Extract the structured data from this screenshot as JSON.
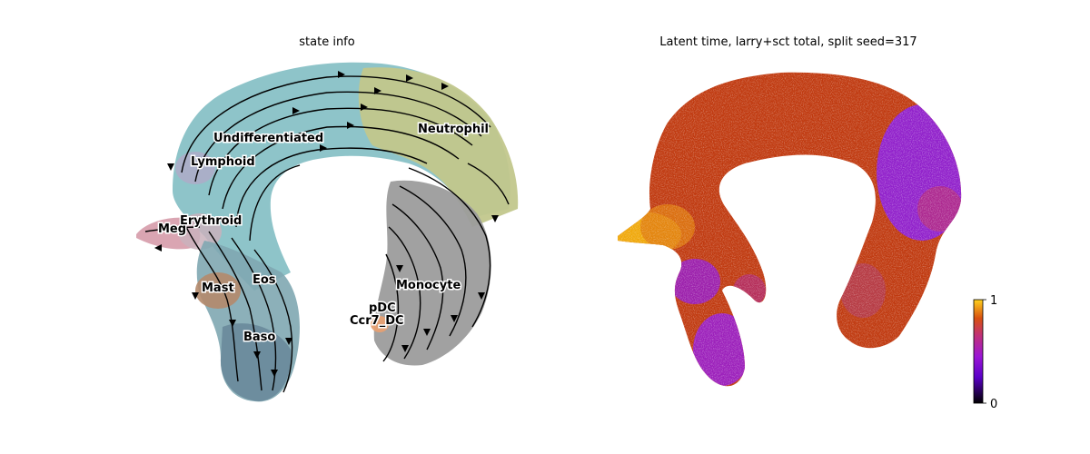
{
  "panels": {
    "left": {
      "title": "state info"
    },
    "right": {
      "title": "Latent time, larry+sct total, split seed=317"
    }
  },
  "chart_data": [
    {
      "type": "scatter",
      "title": "state info",
      "plot_kind": "UMAP embedding with RNA velocity streamlines",
      "axes_visible": false,
      "cell_types": [
        {
          "name": "Undifferentiated",
          "color": "#7fbcc0"
        },
        {
          "name": "Neutrophil",
          "color": "#bfc58a"
        },
        {
          "name": "Lymphoid",
          "color": "#b9a7c9"
        },
        {
          "name": "Meg",
          "color": "#d9a0ad"
        },
        {
          "name": "Erythroid",
          "color": "#c6b0b8"
        },
        {
          "name": "Mast",
          "color": "#b88d6f"
        },
        {
          "name": "Eos",
          "color": "#8aa9ae"
        },
        {
          "name": "Baso",
          "color": "#6b8a9b"
        },
        {
          "name": "Monocyte",
          "color": "#9a9a9a"
        },
        {
          "name": "pDC",
          "color": "#e5a07b"
        },
        {
          "name": "Ccr7_DC",
          "color": "#e8a06f"
        }
      ],
      "streamline_color": "#000000"
    },
    {
      "type": "scatter",
      "title": "Latent time, larry+sct total, split seed=317",
      "plot_kind": "UMAP embedding colored by latent time",
      "axes_visible": false,
      "colormap": "gnuplot",
      "colorbar": {
        "min": 0,
        "max": 1,
        "ticks": [
          "1",
          "0"
        ]
      },
      "regions": [
        {
          "region": "top arc",
          "approx_value": 0.72,
          "color": "#c0390e"
        },
        {
          "region": "Meg tip",
          "approx_value": 0.95,
          "color": "#f3b10a"
        },
        {
          "region": "left branches (Mast/Baso)",
          "approx_value": 0.45,
          "color": "#9a1fb5"
        },
        {
          "region": "right upper (Neutrophil)",
          "approx_value": 0.42,
          "color": "#8a1ee8"
        },
        {
          "region": "right lower (Monocyte)",
          "approx_value": 0.7,
          "color": "#c4421a"
        }
      ]
    }
  ]
}
